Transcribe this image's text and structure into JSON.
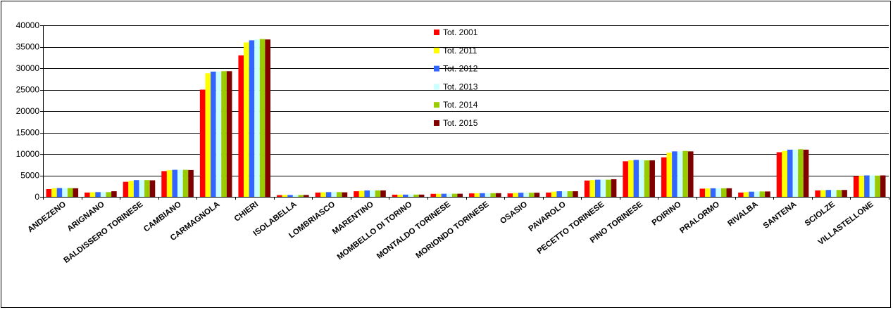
{
  "chart_data": {
    "type": "bar",
    "title": "",
    "xlabel": "",
    "ylabel": "",
    "ylim": [
      0,
      40000
    ],
    "yticks": [
      0,
      5000,
      10000,
      15000,
      20000,
      25000,
      30000,
      35000,
      40000
    ],
    "ytick_labels": [
      "0",
      "5000",
      "10000",
      "15000",
      "20000",
      "25000",
      "30000",
      "35000",
      "40000"
    ],
    "grid": "horizontal",
    "legend_position": "top-center",
    "categories": [
      "ANDEZENO",
      "ARIGNANO",
      "BALDISSERO TORINESE",
      "CAMBIANO",
      "CARMAGNOLA",
      "CHIERI",
      "ISOLABELLA",
      "LOMBRIASCO",
      "MARENTINO",
      "MOMBELLO DI TORINO",
      "MONTALDO TORINESE",
      "MORIONDO TORINESE",
      "OSASIO",
      "PAVAROLO",
      "PECETTO TORINESE",
      "PINO TORINESE",
      "POIRINO",
      "PRALORMO",
      "RIVALBA",
      "SANTENA",
      "SCIOLZE",
      "VILLASTELLONE"
    ],
    "series": [
      {
        "name": "Tot. 2001",
        "color": "#ff0000",
        "values": [
          1800,
          1000,
          3500,
          6000,
          25000,
          33000,
          400,
          1000,
          1300,
          500,
          700,
          800,
          800,
          1000,
          3800,
          8300,
          9200,
          1900,
          1000,
          10400,
          1500,
          4800
        ]
      },
      {
        "name": "Tot. 2011",
        "color": "#ffff00",
        "values": [
          2000,
          1050,
          3700,
          6200,
          28800,
          36000,
          420,
          1050,
          1400,
          510,
          710,
          830,
          900,
          1200,
          3900,
          8500,
          10300,
          1950,
          1100,
          10700,
          1550,
          4900
        ]
      },
      {
        "name": "Tot. 2012",
        "color": "#3366ff",
        "values": [
          2050,
          1100,
          3900,
          6300,
          29200,
          36500,
          430,
          1100,
          1500,
          520,
          720,
          850,
          950,
          1300,
          4000,
          8600,
          10600,
          2000,
          1200,
          11000,
          1600,
          5000
        ]
      },
      {
        "name": "Tot. 2013",
        "color": "#ccffff",
        "values": [
          2050,
          1100,
          3900,
          6300,
          29200,
          36700,
          430,
          1100,
          1500,
          520,
          720,
          850,
          950,
          1300,
          4000,
          8600,
          10600,
          2000,
          1200,
          11000,
          1600,
          5000
        ]
      },
      {
        "name": "Tot. 2014",
        "color": "#99cc00",
        "values": [
          2050,
          1100,
          3900,
          6300,
          29300,
          36800,
          430,
          1100,
          1500,
          520,
          720,
          850,
          950,
          1300,
          4000,
          8500,
          10700,
          2000,
          1250,
          11100,
          1600,
          4950
        ]
      },
      {
        "name": "Tot. 2015",
        "color": "#800000",
        "values": [
          2000,
          1300,
          3850,
          6250,
          29300,
          36700,
          430,
          1050,
          1500,
          520,
          720,
          850,
          950,
          1300,
          4100,
          8500,
          10600,
          2000,
          1250,
          11000,
          1600,
          5000
        ]
      }
    ]
  }
}
